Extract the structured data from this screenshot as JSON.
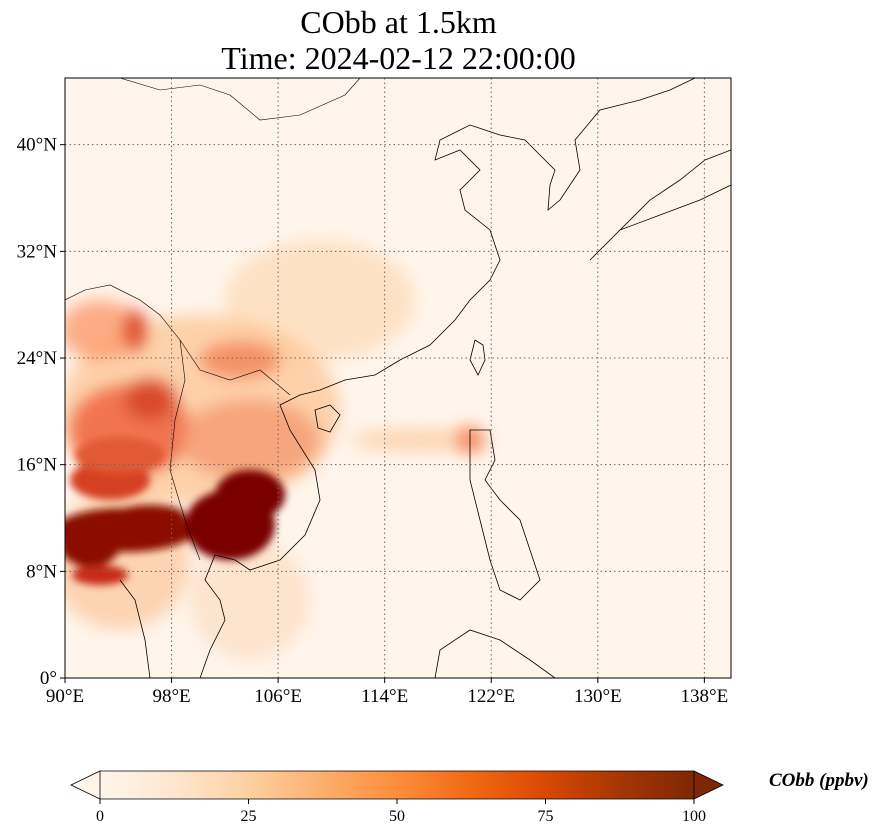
{
  "title_line_1": "CObb at 1.5km",
  "title_line_2": "Time: 2024-02-12 22:00:00",
  "map": {
    "lon_range": [
      90,
      140
    ],
    "lat_range": [
      0,
      45
    ],
    "lon_ticks": [
      {
        "value": 90,
        "label": "90°E"
      },
      {
        "value": 98,
        "label": "98°E"
      },
      {
        "value": 106,
        "label": "106°E"
      },
      {
        "value": 114,
        "label": "114°E"
      },
      {
        "value": 122,
        "label": "122°E"
      },
      {
        "value": 130,
        "label": "130°E"
      },
      {
        "value": 138,
        "label": "138°E"
      }
    ],
    "lat_ticks": [
      {
        "value": 0,
        "label": "0°"
      },
      {
        "value": 8,
        "label": "8°N"
      },
      {
        "value": 16,
        "label": "16°N"
      },
      {
        "value": 24,
        "label": "24°N"
      },
      {
        "value": 32,
        "label": "32°N"
      },
      {
        "value": 40,
        "label": "40°N"
      }
    ],
    "gridlines": true
  },
  "colorbar": {
    "label": "CObb (ppbv)",
    "ticks": [
      {
        "value": 0,
        "label": "0"
      },
      {
        "value": 25,
        "label": "25"
      },
      {
        "value": 50,
        "label": "50"
      },
      {
        "value": 75,
        "label": "75"
      },
      {
        "value": 100,
        "label": "100"
      }
    ],
    "range": [
      0,
      100
    ],
    "colormap": [
      "#fff5eb",
      "#fee6ce",
      "#fdd0a2",
      "#fdae6b",
      "#fd8d3c",
      "#f16913",
      "#d94801",
      "#a63603",
      "#7f2704"
    ]
  }
}
